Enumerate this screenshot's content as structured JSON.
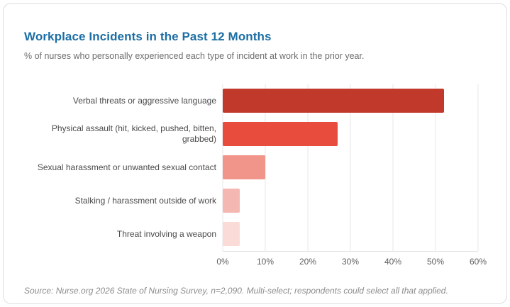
{
  "card": {
    "title": "Workplace Incidents in the Past 12 Months",
    "subtitle": "% of nurses who personally experienced each type of incident at work in the prior year.",
    "source": "Source: Nurse.org 2026 State of Nursing Survey, n=2,090. Multi-select; respondents could select all that applied.",
    "title_color": "#1c6ea4"
  },
  "chart_data": {
    "type": "bar",
    "orientation": "horizontal",
    "title": "Workplace Incidents in the Past 12 Months",
    "subtitle": "% of nurses who personally experienced each type of incident at work in the prior year.",
    "categories": [
      "Verbal threats or aggressive language",
      "Physical assault (hit, kicked, pushed, bitten, grabbed)",
      "Sexual harassment or unwanted sexual contact",
      "Stalking / harassment outside of work",
      "Threat involving a weapon"
    ],
    "values": [
      52,
      27,
      10,
      4,
      4
    ],
    "value_unit": "%",
    "bar_colors": [
      "#c0392b",
      "#e74c3c",
      "#f1948a",
      "#f5b7b1",
      "#fadbd8"
    ],
    "xlabel": "",
    "ylabel": "",
    "xlim": [
      0,
      60
    ],
    "x_tick_labels": [
      "0%",
      "10%",
      "20%",
      "30%",
      "40%",
      "50%",
      "60%"
    ],
    "grid": "vertical",
    "legend": "none"
  }
}
